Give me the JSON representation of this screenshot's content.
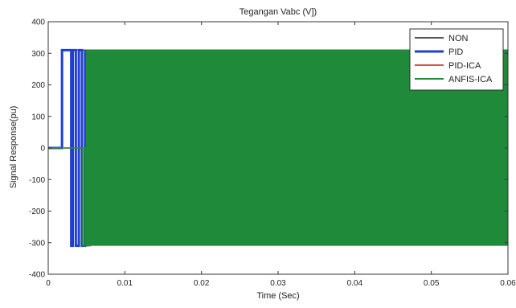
{
  "chart_data": {
    "type": "line",
    "title": "Tegangan Vabc (V])",
    "xlabel": "Time (Sec)",
    "ylabel": "Signal Response(pu)",
    "xlim": [
      0,
      0.06
    ],
    "ylim": [
      -400,
      400
    ],
    "x_ticks": [
      0,
      0.01,
      0.02,
      0.03,
      0.04,
      0.05,
      0.06
    ],
    "x_tick_labels": [
      "0",
      "0.01",
      "0.02",
      "0.03",
      "0.04",
      "0.05",
      "0.06"
    ],
    "y_ticks": [
      -400,
      -300,
      -200,
      -100,
      0,
      100,
      200,
      300,
      400
    ],
    "y_tick_labels": [
      "-400",
      "-300",
      "-200",
      "-100",
      "0",
      "100",
      "200",
      "300",
      "400"
    ],
    "legend_position": "top-right",
    "colors": {
      "NON": "#555555",
      "PID": "#1f3fd0",
      "PID-ICA": "#d9534f",
      "ANFIS-ICA": "#1e8a3a"
    },
    "series": [
      {
        "name": "NON",
        "x": [
          0,
          0.0018,
          0.0018,
          0.06
        ],
        "y": [
          0,
          0,
          310,
          310
        ]
      },
      {
        "name": "PID",
        "x": [
          0,
          0.0018,
          0.0018,
          0.003,
          0.003,
          0.0032,
          0.0032,
          0.0036,
          0.0036,
          0.004,
          0.004,
          0.0044,
          0.0044,
          0.0048,
          0.0048
        ],
        "y": [
          0,
          0,
          310,
          310,
          -310,
          -310,
          310,
          310,
          -310,
          -310,
          310,
          310,
          -310,
          -310,
          310
        ]
      },
      {
        "name": "PID-ICA",
        "x": [
          0,
          0.0054,
          0.0054,
          0.0056
        ],
        "y": [
          0,
          0,
          -310,
          -310
        ]
      },
      {
        "name": "ANFIS-ICA",
        "x": [
          0,
          0.0045,
          0.0045,
          0.0047,
          0.0047,
          0.0049,
          0.0049,
          0.0052,
          0.0052,
          0.06
        ],
        "y": [
          0,
          0,
          -310,
          -310,
          0,
          0,
          -310,
          -310,
          310,
          310
        ],
        "fill_band": {
          "x_start": 0.0049,
          "x_end": 0.06,
          "y_low": -310,
          "y_high": 310
        }
      }
    ],
    "grid": false
  }
}
